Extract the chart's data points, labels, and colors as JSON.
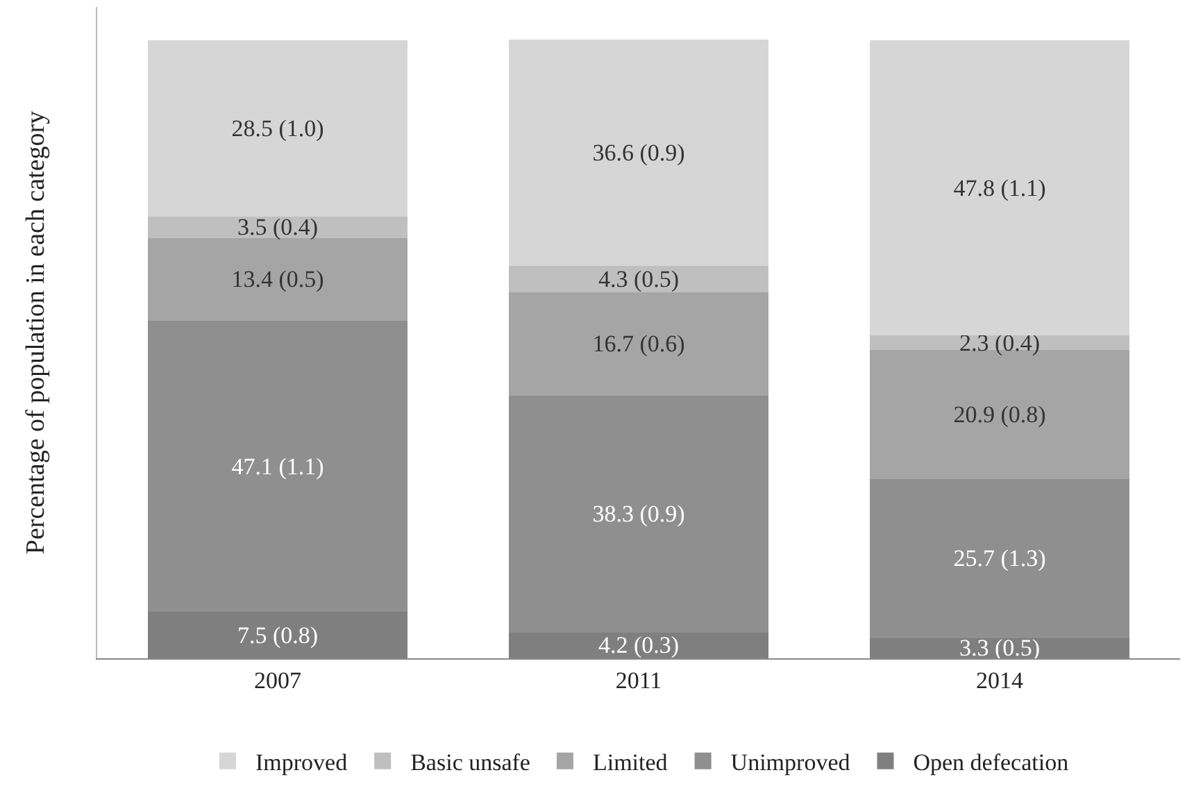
{
  "chart_data": {
    "type": "bar",
    "stacked": true,
    "ylabel": "Percentage of population in each category",
    "categories": [
      "2007",
      "2011",
      "2014"
    ],
    "series": [
      {
        "name": "Open defecation",
        "color": "#7f7f7f",
        "values": [
          7.5,
          4.2,
          3.3
        ],
        "value_labels": [
          "7.5 (0.8)",
          "4.2 (0.3)",
          "3.3 (0.5)"
        ]
      },
      {
        "name": "Unimproved",
        "color": "#8f8f8f",
        "values": [
          47.1,
          38.3,
          25.7
        ],
        "value_labels": [
          "47.1 (1.1)",
          "38.3 (0.9)",
          "25.7 (1.3)"
        ]
      },
      {
        "name": "Limited",
        "color": "#a5a5a5",
        "values": [
          13.4,
          16.7,
          20.9
        ],
        "value_labels": [
          "13.4 (0.5)",
          "16.7 (0.6)",
          "20.9 (0.8)"
        ]
      },
      {
        "name": "Basic unsafe",
        "color": "#bfbfbf",
        "values": [
          3.5,
          4.3,
          2.3
        ],
        "value_labels": [
          "3.5 (0.4)",
          "4.3 (0.5)",
          "2.3 (0.4)"
        ]
      },
      {
        "name": "Improved",
        "color": "#d6d6d6",
        "values": [
          28.5,
          36.6,
          47.8
        ],
        "value_labels": [
          "28.5 (1.0)",
          "36.6 (0.9)",
          "47.8 (1.1)"
        ]
      }
    ],
    "grid": false,
    "legend": "bottom"
  }
}
